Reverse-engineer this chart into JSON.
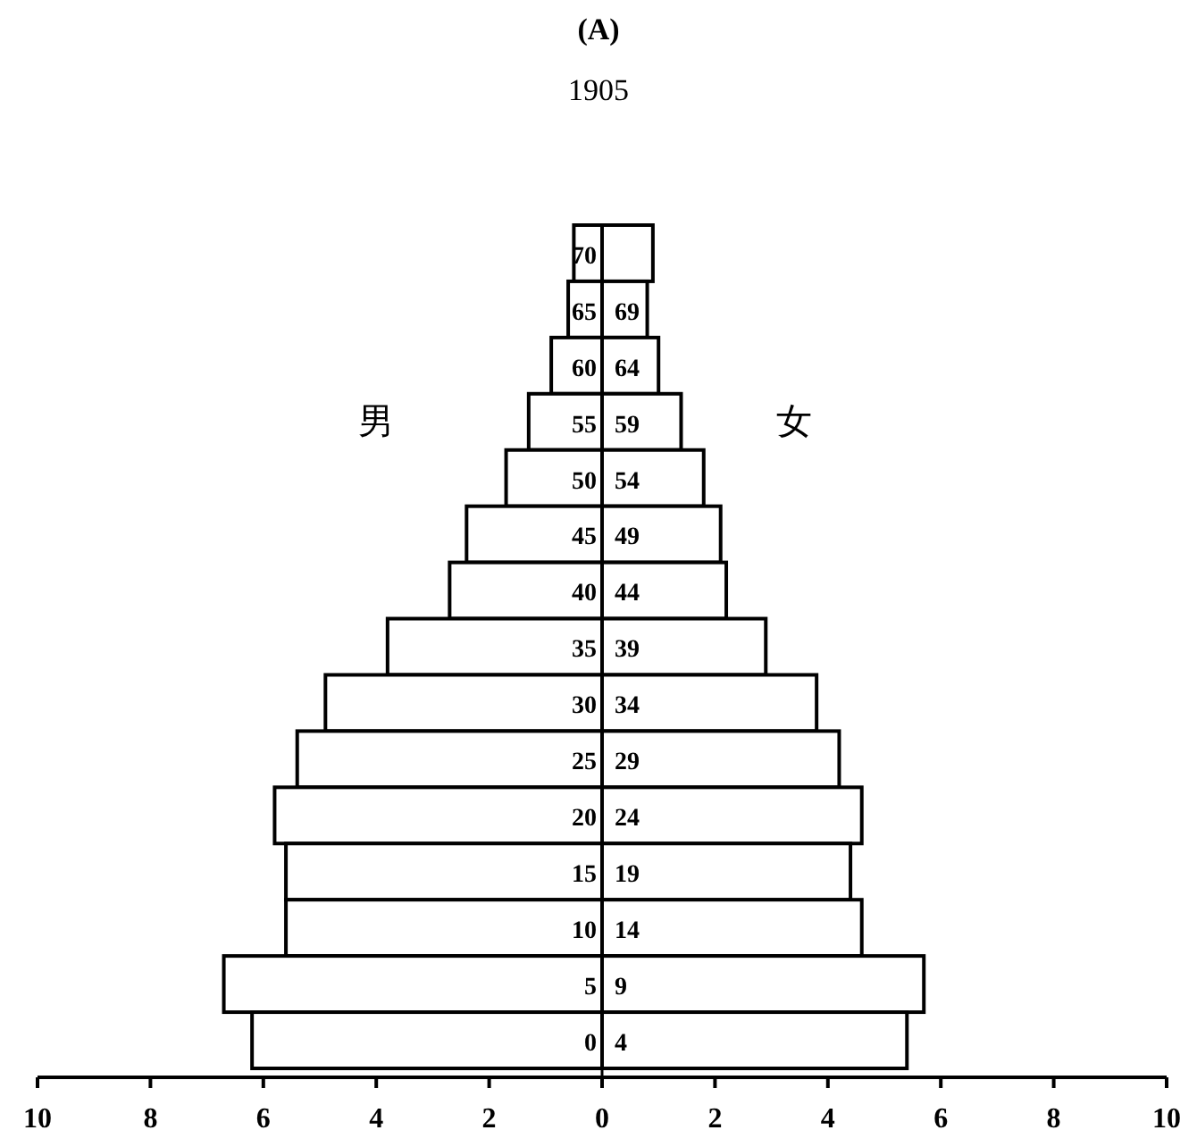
{
  "chart_data": {
    "type": "bar",
    "orientation": "horizontal",
    "title": "(A)",
    "subtitle": "1905",
    "categories": [
      "70",
      "65",
      "60",
      "55",
      "50",
      "45",
      "40",
      "35",
      "30",
      "25",
      "20",
      "15",
      "10",
      "5",
      "0"
    ],
    "series": [
      {
        "name": "男",
        "color": "#ffffff",
        "values": [
          -0.5,
          -0.6,
          -0.9,
          -1.3,
          -1.7,
          -2.4,
          -2.7,
          -3.8,
          -4.9,
          -5.4,
          -5.8,
          -5.6,
          -5.6,
          -6.7,
          -6.2
        ]
      },
      {
        "name": "女",
        "color": "#ffffff",
        "values": [
          0.9,
          0.8,
          1.0,
          1.4,
          1.8,
          2.1,
          2.2,
          2.9,
          3.8,
          4.2,
          4.6,
          4.4,
          4.6,
          5.7,
          5.4
        ]
      }
    ],
    "annotations": [
      {
        "text": "69",
        "y": "65"
      },
      {
        "text": "64",
        "y": "60"
      },
      {
        "text": "59",
        "y": "55"
      },
      {
        "text": "54",
        "y": "50"
      },
      {
        "text": "49",
        "y": "45"
      },
      {
        "text": "44",
        "y": "40"
      },
      {
        "text": "39",
        "y": "35"
      },
      {
        "text": "34",
        "y": "30"
      },
      {
        "text": "29",
        "y": "25"
      },
      {
        "text": "24",
        "y": "20"
      },
      {
        "text": "19",
        "y": "15"
      },
      {
        "text": "14",
        "y": "10"
      },
      {
        "text": "9",
        "y": "5"
      },
      {
        "text": "4",
        "y": "0"
      }
    ],
    "xlim": [
      -10,
      10
    ],
    "xticks": [
      {
        "value": -10,
        "label": "10"
      },
      {
        "value": -8,
        "label": "8"
      },
      {
        "value": -6,
        "label": "6"
      },
      {
        "value": -4,
        "label": "4"
      },
      {
        "value": -2,
        "label": "2"
      },
      0,
      2,
      4,
      6,
      8,
      10
    ],
    "stacked": true,
    "legend": false
  }
}
